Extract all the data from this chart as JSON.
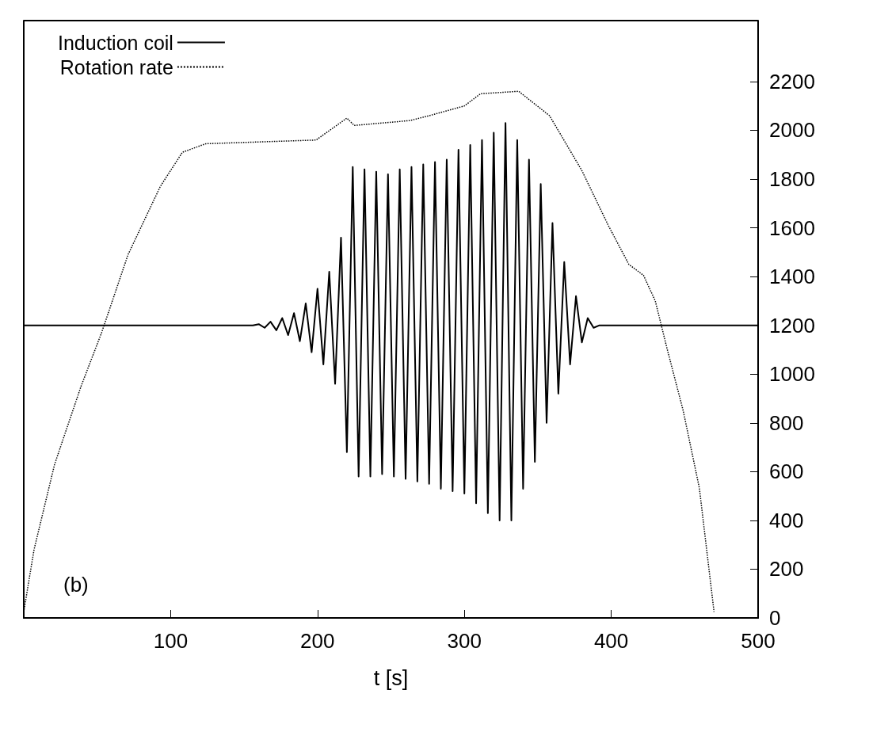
{
  "chart_data": {
    "type": "line",
    "xlabel": "t [s]",
    "annotations": [
      "(b)"
    ],
    "xlim": [
      0,
      500
    ],
    "xticks": [
      100,
      200,
      300,
      400,
      500
    ],
    "y2lim": [
      0,
      2450
    ],
    "y2ticks": [
      0,
      200,
      400,
      600,
      800,
      1000,
      1200,
      1400,
      1600,
      1800,
      2000,
      2200
    ],
    "legend": "top left",
    "grid": false,
    "marker": "none",
    "series": [
      {
        "name": "Induction coil",
        "color": "#000000",
        "axis": "y2",
        "line_style": "solid",
        "x": [
          0,
          156,
          160,
          164,
          168,
          172,
          176,
          180,
          184,
          188,
          192,
          196,
          200,
          204,
          208,
          212,
          216,
          220,
          224,
          228,
          232,
          236,
          240,
          244,
          248,
          252,
          256,
          260,
          264,
          268,
          272,
          276,
          280,
          284,
          288,
          292,
          296,
          300,
          304,
          308,
          312,
          316,
          320,
          324,
          328,
          332,
          336,
          340,
          344,
          348,
          352,
          356,
          360,
          364,
          368,
          372,
          376,
          380,
          384,
          388,
          392,
          500
        ],
        "values": [
          1200,
          1200,
          1205,
          1190,
          1215,
          1180,
          1230,
          1160,
          1250,
          1135,
          1290,
          1090,
          1350,
          1040,
          1420,
          960,
          1560,
          680,
          1850,
          580,
          1840,
          580,
          1830,
          590,
          1820,
          580,
          1840,
          570,
          1850,
          560,
          1860,
          550,
          1870,
          530,
          1880,
          520,
          1920,
          510,
          1940,
          470,
          1960,
          430,
          1990,
          400,
          2030,
          400,
          1960,
          530,
          1880,
          640,
          1780,
          800,
          1620,
          920,
          1460,
          1040,
          1320,
          1130,
          1230,
          1190,
          1200,
          1200
        ]
      },
      {
        "name": "Rotation rate",
        "color": "#000000",
        "axis": "y2",
        "line_style": "dotted",
        "x": [
          0,
          7,
          21,
          39,
          53,
          71,
          93,
          108,
          124,
          199,
          220,
          225,
          263,
          276,
          300,
          311,
          337,
          358,
          380,
          398,
          412,
          422,
          430,
          438,
          449,
          460,
          470
        ],
        "values": [
          25,
          280,
          630,
          950,
          1170,
          1490,
          1770,
          1910,
          1945,
          1960,
          2050,
          2020,
          2040,
          2060,
          2100,
          2150,
          2160,
          2060,
          1835,
          1610,
          1450,
          1405,
          1300,
          1105,
          850,
          533,
          25
        ]
      }
    ]
  }
}
